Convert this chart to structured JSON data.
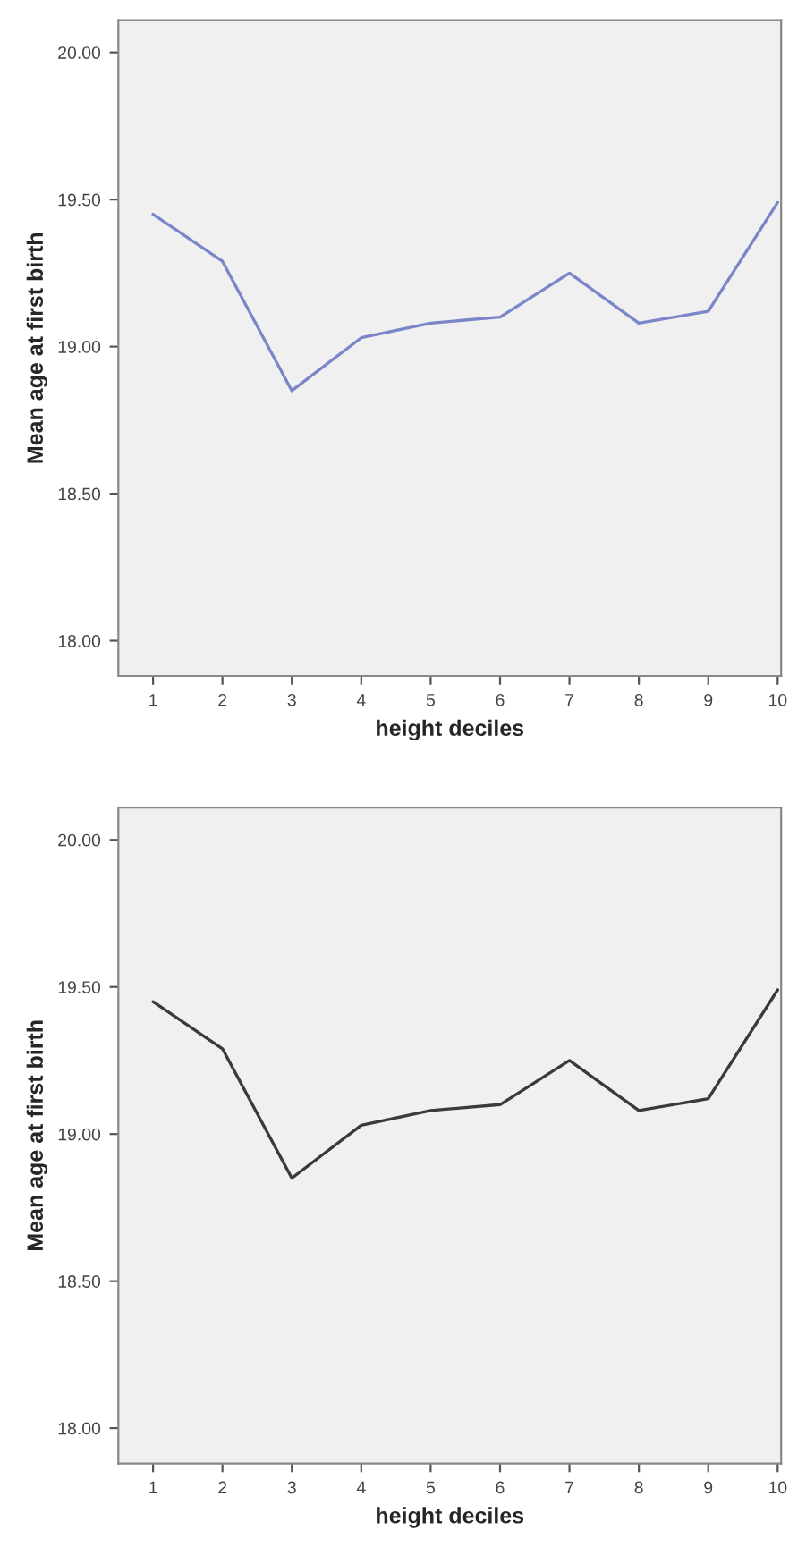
{
  "chart_data": [
    {
      "type": "line",
      "xlabel": "height deciles",
      "ylabel": "Mean age at first birth",
      "categories": [
        "1",
        "2",
        "3",
        "4",
        "5",
        "6",
        "7",
        "8",
        "9",
        "10"
      ],
      "series": [
        {
          "color": "#7b86c8",
          "values": [
            19.45,
            19.29,
            18.85,
            19.03,
            19.08,
            19.1,
            19.25,
            19.08,
            19.12,
            19.49
          ]
        }
      ],
      "ylim": [
        17.88,
        20.11
      ],
      "yticks": [
        {
          "value": 18,
          "label": "18.00"
        },
        {
          "value": 18.5,
          "label": "18.50"
        },
        {
          "value": 19,
          "label": "19.00"
        },
        {
          "value": 19.5,
          "label": "19.50"
        },
        {
          "value": 20,
          "label": "20.00"
        }
      ],
      "grid": false,
      "legend": false
    },
    {
      "type": "line",
      "xlabel": "height deciles",
      "ylabel": "Mean age at first birth",
      "categories": [
        "1",
        "2",
        "3",
        "4",
        "5",
        "6",
        "7",
        "8",
        "9",
        "10"
      ],
      "series": [
        {
          "color": "#3a3a3a",
          "values": [
            19.45,
            19.29,
            18.85,
            19.03,
            19.08,
            19.1,
            19.25,
            19.08,
            19.12,
            19.49
          ]
        }
      ],
      "ylim": [
        17.88,
        20.11
      ],
      "yticks": [
        {
          "value": 18,
          "label": "18.00"
        },
        {
          "value": 18.5,
          "label": "18.50"
        },
        {
          "value": 19,
          "label": "19.00"
        },
        {
          "value": 19.5,
          "label": "19.50"
        },
        {
          "value": 20,
          "label": "20.00"
        }
      ],
      "grid": false,
      "legend": false
    }
  ]
}
